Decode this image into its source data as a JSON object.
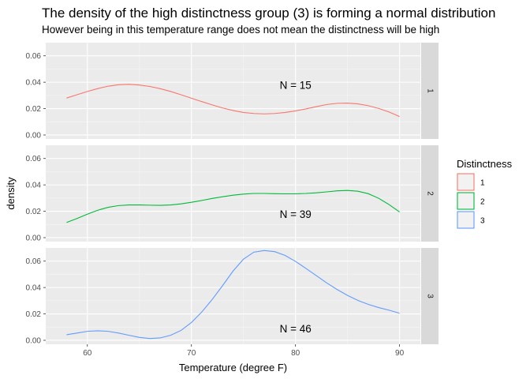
{
  "chart_data": {
    "type": "line",
    "title": "The density of the high distinctness group (3) is forming a normal distribution",
    "subtitle": "However being in this temperature range does not mean the distinctness will be high",
    "xlabel": "Temperature (degree F)",
    "ylabel": "density",
    "xlim": [
      56,
      92
    ],
    "ylim": [
      -0.003,
      0.07
    ],
    "x_ticks": [
      60,
      70,
      80,
      90
    ],
    "y_ticks": [
      0.0,
      0.02,
      0.04,
      0.06
    ],
    "y_tick_labels": [
      "0.00",
      "0.02",
      "0.04",
      "0.06"
    ],
    "facet_layout": "rows",
    "grid": true,
    "legend": {
      "title": "Distinctness",
      "position": "right",
      "entries": [
        "1",
        "2",
        "3"
      ]
    },
    "series": [
      {
        "name": "1",
        "color": "#F8766D",
        "annotation": "N =  15",
        "annotation_pos": {
          "x": 80,
          "y": 0.038
        },
        "points": [
          [
            58,
            0.028
          ],
          [
            59,
            0.0305
          ],
          [
            60,
            0.033
          ],
          [
            61,
            0.0352
          ],
          [
            62,
            0.037
          ],
          [
            63,
            0.0381
          ],
          [
            64,
            0.0384
          ],
          [
            65,
            0.0379
          ],
          [
            66,
            0.0368
          ],
          [
            67,
            0.0351
          ],
          [
            68,
            0.033
          ],
          [
            69,
            0.0305
          ],
          [
            70,
            0.0279
          ],
          [
            71,
            0.0253
          ],
          [
            72,
            0.0228
          ],
          [
            73,
            0.0205
          ],
          [
            74,
            0.0186
          ],
          [
            75,
            0.0171
          ],
          [
            76,
            0.0163
          ],
          [
            77,
            0.016
          ],
          [
            78,
            0.0163
          ],
          [
            79,
            0.0171
          ],
          [
            80,
            0.0183
          ],
          [
            81,
            0.0198
          ],
          [
            82,
            0.0215
          ],
          [
            83,
            0.0231
          ],
          [
            84,
            0.024
          ],
          [
            85,
            0.0242
          ],
          [
            86,
            0.0236
          ],
          [
            87,
            0.0222
          ],
          [
            88,
            0.0201
          ],
          [
            89,
            0.0174
          ],
          [
            90,
            0.014
          ]
        ]
      },
      {
        "name": "2",
        "color": "#00BA38",
        "annotation": "N =  39",
        "annotation_pos": {
          "x": 80,
          "y": 0.018
        },
        "points": [
          [
            58,
            0.0115
          ],
          [
            59,
            0.0145
          ],
          [
            60,
            0.0178
          ],
          [
            61,
            0.0208
          ],
          [
            62,
            0.023
          ],
          [
            63,
            0.0243
          ],
          [
            64,
            0.0248
          ],
          [
            65,
            0.0248
          ],
          [
            66,
            0.0246
          ],
          [
            67,
            0.0245
          ],
          [
            68,
            0.0248
          ],
          [
            69,
            0.0256
          ],
          [
            70,
            0.0268
          ],
          [
            71,
            0.0282
          ],
          [
            72,
            0.0297
          ],
          [
            73,
            0.031
          ],
          [
            74,
            0.0322
          ],
          [
            75,
            0.033
          ],
          [
            76,
            0.0335
          ],
          [
            77,
            0.0335
          ],
          [
            78,
            0.0333
          ],
          [
            79,
            0.0332
          ],
          [
            80,
            0.0332
          ],
          [
            81,
            0.0335
          ],
          [
            82,
            0.034
          ],
          [
            83,
            0.0347
          ],
          [
            84,
            0.0355
          ],
          [
            85,
            0.0358
          ],
          [
            86,
            0.0352
          ],
          [
            87,
            0.0333
          ],
          [
            88,
            0.0298
          ],
          [
            89,
            0.025
          ],
          [
            90,
            0.0195
          ]
        ]
      },
      {
        "name": "3",
        "color": "#619CFF",
        "annotation": "N =  46",
        "annotation_pos": {
          "x": 80,
          "y": 0.009
        },
        "points": [
          [
            58,
            0.0042
          ],
          [
            59,
            0.0055
          ],
          [
            60,
            0.0068
          ],
          [
            61,
            0.0072
          ],
          [
            62,
            0.0068
          ],
          [
            63,
            0.0055
          ],
          [
            64,
            0.0038
          ],
          [
            65,
            0.0022
          ],
          [
            66,
            0.0014
          ],
          [
            67,
            0.0018
          ],
          [
            68,
            0.0038
          ],
          [
            69,
            0.0075
          ],
          [
            70,
            0.0135
          ],
          [
            71,
            0.0215
          ],
          [
            72,
            0.031
          ],
          [
            73,
            0.0415
          ],
          [
            74,
            0.0525
          ],
          [
            75,
            0.0615
          ],
          [
            76,
            0.0668
          ],
          [
            77,
            0.068
          ],
          [
            78,
            0.0672
          ],
          [
            79,
            0.0643
          ],
          [
            80,
            0.0598
          ],
          [
            81,
            0.0545
          ],
          [
            82,
            0.049
          ],
          [
            83,
            0.0435
          ],
          [
            84,
            0.0385
          ],
          [
            85,
            0.034
          ],
          [
            86,
            0.0302
          ],
          [
            87,
            0.0272
          ],
          [
            88,
            0.0248
          ],
          [
            89,
            0.0228
          ],
          [
            90,
            0.0205
          ]
        ]
      }
    ]
  }
}
